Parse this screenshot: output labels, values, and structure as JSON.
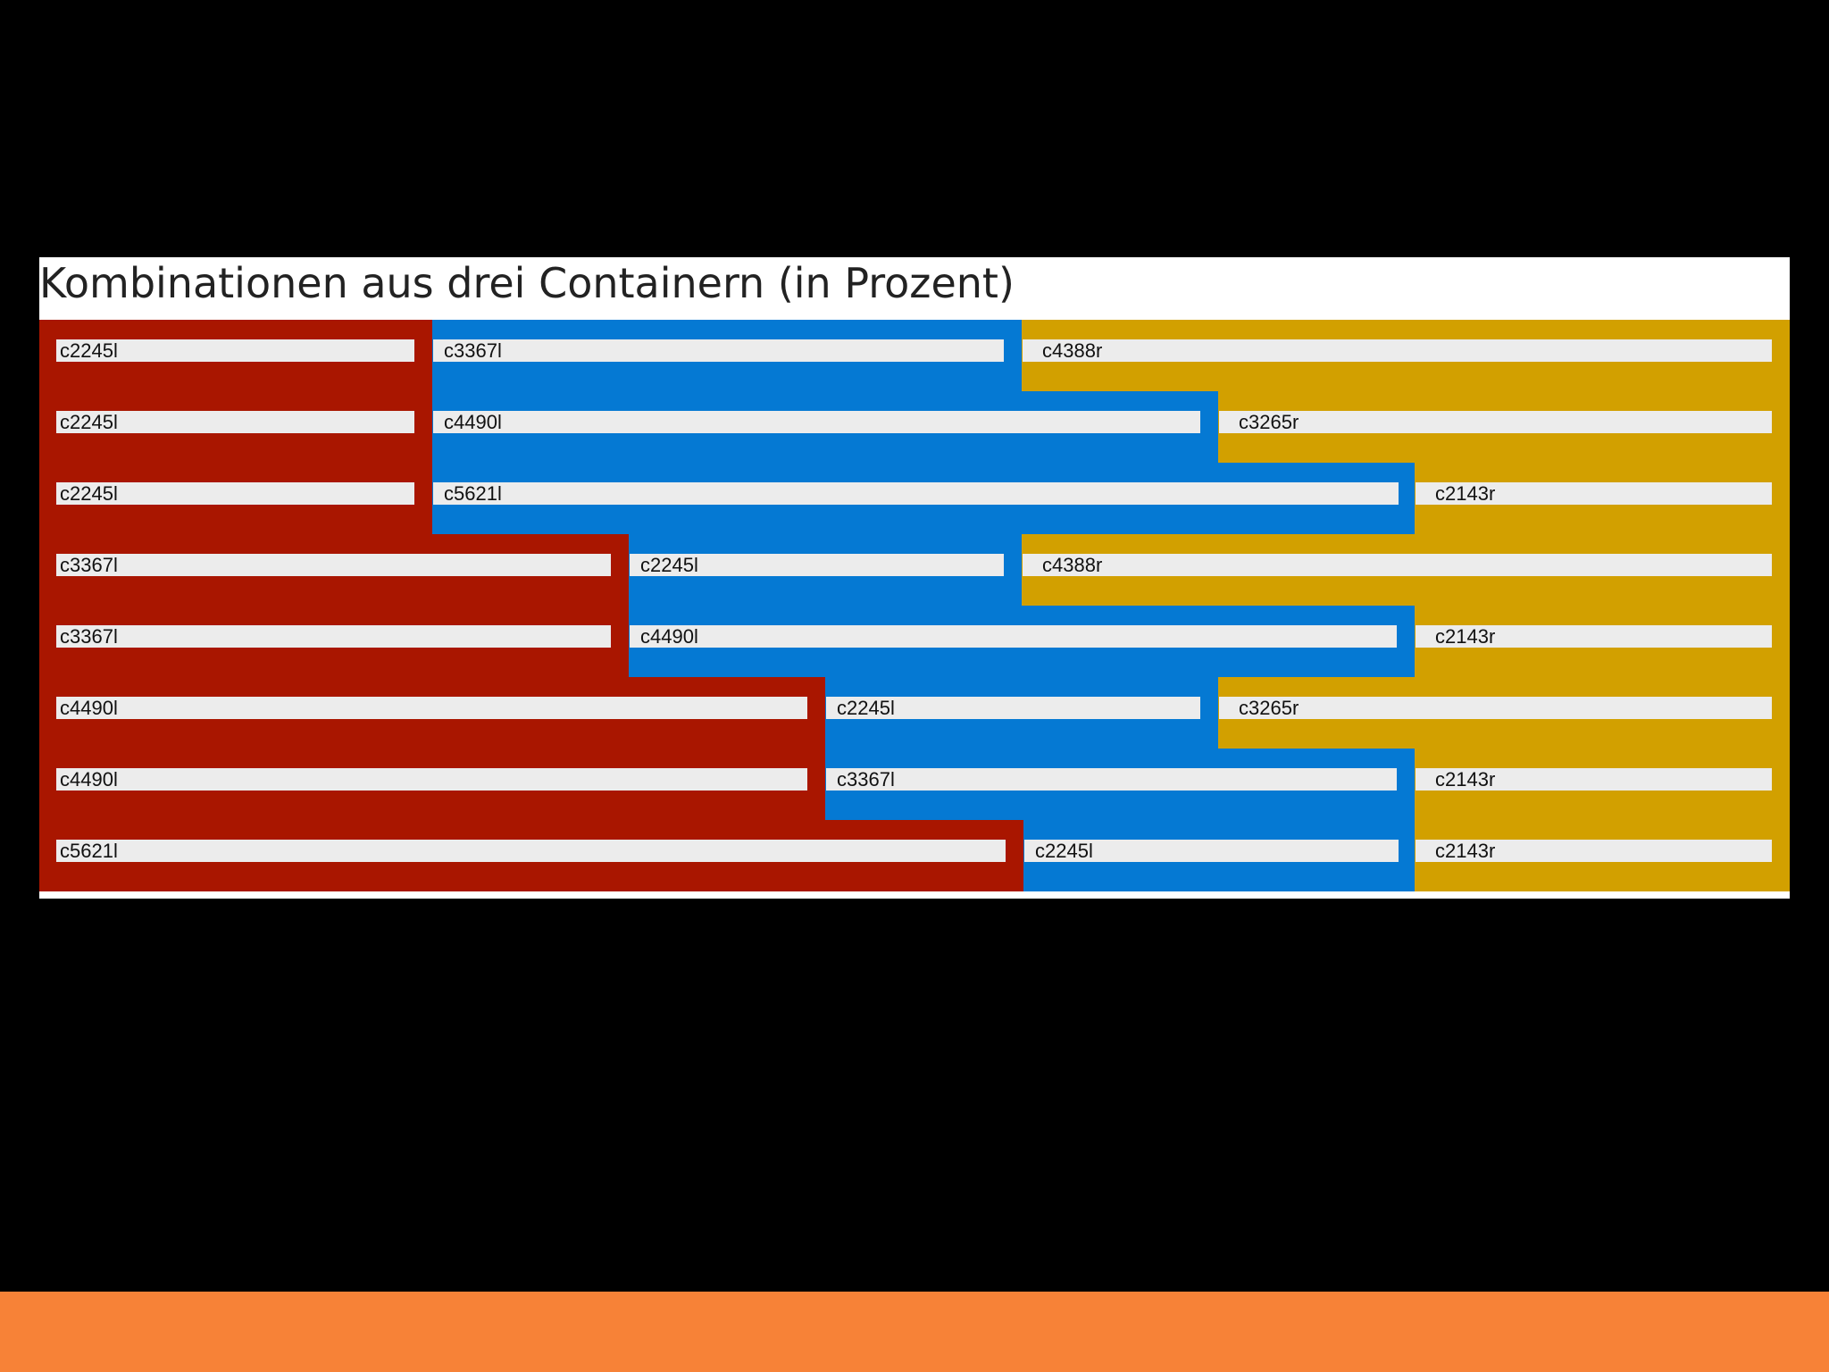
{
  "slide": {
    "title": "Kombinationen aus drei Containern (in Prozent)"
  },
  "colors": {
    "background": "#000000",
    "panel": "#ffffff",
    "red": "#a91600",
    "blue": "#0579d3",
    "gold": "#d2a000",
    "bar": "#ececec",
    "footer": "#f78237"
  },
  "combinations": [
    [
      "c2245l",
      "c3367l",
      "c4388r"
    ],
    [
      "c2245l",
      "c4490l",
      "c3265r"
    ],
    [
      "c2245l",
      "c5621l",
      "c2143r"
    ],
    [
      "c3367l",
      "c2245l",
      "c4388r"
    ],
    [
      "c3367l",
      "c4490l",
      "c2143r"
    ],
    [
      "c4490l",
      "c2245l",
      "c3265r"
    ],
    [
      "c4490l",
      "c3367l",
      "c2143r"
    ],
    [
      "c5621l",
      "c2245l",
      "c2143r"
    ]
  ]
}
